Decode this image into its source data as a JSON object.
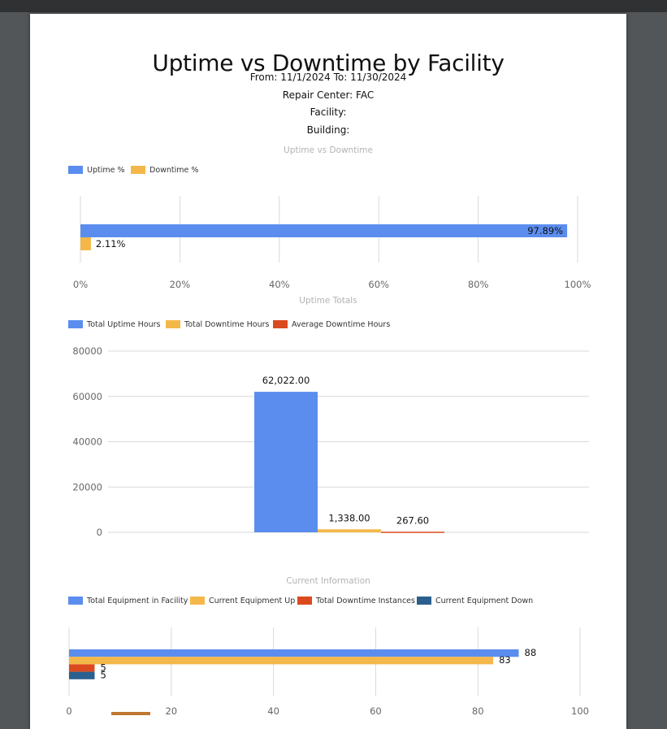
{
  "report": {
    "title": "Uptime vs Downtime by Facility",
    "date_range": "From: 11/1/2024 To: 11/30/2024",
    "repair_center": "Repair Center: FAC",
    "facility": "Facility:",
    "building": "Building:"
  },
  "colors": {
    "blue": "#5b8def",
    "yellow": "#f4b84a",
    "orange": "#db4a1f",
    "navy": "#2a5f8e"
  },
  "chart_data": [
    {
      "type": "bar",
      "orientation": "horizontal",
      "title": "Uptime vs Downtime",
      "legend_position": "top-left",
      "grid": true,
      "xlim": [
        0,
        100
      ],
      "ticks": [
        "0%",
        "20%",
        "40%",
        "60%",
        "80%",
        "100%"
      ],
      "series": [
        {
          "name": "Uptime %",
          "value": 97.89,
          "label": "97.89%",
          "color": "#5b8def"
        },
        {
          "name": "Downtime %",
          "value": 2.11,
          "label": "2.11%",
          "color": "#f4b84a"
        }
      ]
    },
    {
      "type": "bar",
      "orientation": "vertical",
      "title": "Uptime Totals",
      "legend_position": "top-left",
      "grid": true,
      "ylim": [
        0,
        80000
      ],
      "ticks": [
        "0",
        "20000",
        "40000",
        "60000",
        "80000"
      ],
      "series": [
        {
          "name": "Total Uptime Hours",
          "value": 62022.0,
          "label": "62,022.00",
          "color": "#5b8def"
        },
        {
          "name": "Total Downtime Hours",
          "value": 1338.0,
          "label": "1,338.00",
          "color": "#f4b84a"
        },
        {
          "name": "Average Downtime Hours",
          "value": 267.6,
          "label": "267.60",
          "color": "#db4a1f"
        }
      ]
    },
    {
      "type": "bar",
      "orientation": "horizontal",
      "title": "Current Information",
      "legend_position": "top-left",
      "grid": true,
      "xlim": [
        0,
        100
      ],
      "ticks": [
        "0",
        "20",
        "40",
        "60",
        "80",
        "100"
      ],
      "series": [
        {
          "name": "Total Equipment in Facility",
          "value": 88,
          "label": "88",
          "color": "#5b8def"
        },
        {
          "name": "Current Equipment Up",
          "value": 83,
          "label": "83",
          "color": "#f4b84a"
        },
        {
          "name": "Total Downtime Instances",
          "value": 5,
          "label": "5",
          "color": "#db4a1f"
        },
        {
          "name": "Current Equipment Down",
          "value": 5,
          "label": "5",
          "color": "#2a5f8e"
        }
      ]
    }
  ]
}
